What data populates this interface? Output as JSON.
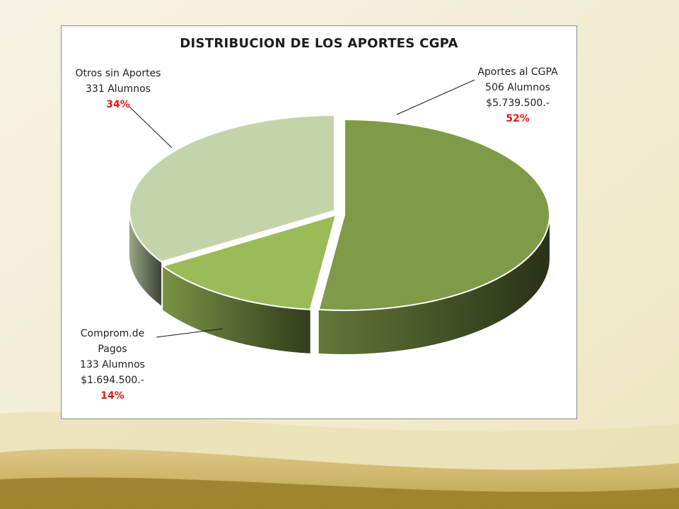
{
  "chart_data": {
    "type": "pie",
    "title": "DISTRIBUCION DE LOS APORTES CGPA",
    "slices": [
      {
        "lines": [
          "Aportes al CGPA",
          "506 Alumnos",
          "$5.739.500.-"
        ],
        "percent_label": "52%",
        "value": 52,
        "color": "#7f9a48"
      },
      {
        "lines": [
          "Comprom.de",
          "Pagos",
          "133 Alumnos",
          "$1.694.500.-"
        ],
        "percent_label": "14%",
        "value": 14,
        "color": "#9bbb59"
      },
      {
        "lines": [
          "Otros sin Aportes",
          "331 Alumnos"
        ],
        "percent_label": "34%",
        "value": 34,
        "color": "#c4d4aa"
      }
    ]
  }
}
